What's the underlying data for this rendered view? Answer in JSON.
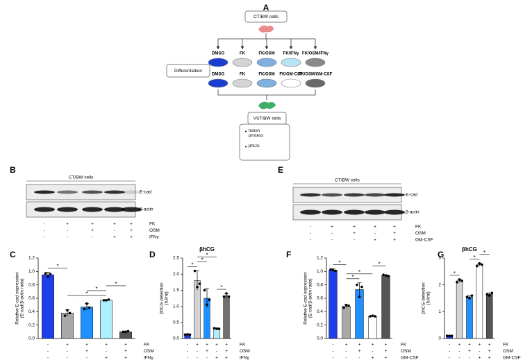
{
  "diagram": {
    "letter": "A",
    "source": "CT/BW cells",
    "row1": [
      "DMSO",
      "FK",
      "FK/OSM",
      "FK/IFNγ",
      "FK/OSM/IFNγ"
    ],
    "row2": [
      "DMSO",
      "FK",
      "FK/OSM",
      "FK/GM-CSF",
      "FK/OSM/GM-CSF"
    ],
    "colors1": [
      "#1a3fd0",
      "#d4d4d4",
      "#7fb0e0",
      "#b8e4f5",
      "#8a8a8a"
    ],
    "colors2": [
      "#1a3fd0",
      "#d4d4d4",
      "#7fb0e0",
      "#ffffff",
      "#6a6a6a"
    ],
    "step": "Differentiation",
    "result": "VST/BW cells",
    "readouts": [
      "fusion process",
      "βhCG"
    ]
  },
  "blots": [
    {
      "letter": "B",
      "title": "CT/BW cells",
      "bands": [
        "E-cad",
        "β-actin"
      ],
      "conditions": [
        {
          "name": "FK",
          "signs": [
            "-",
            "+",
            "+",
            "+",
            "+"
          ]
        },
        {
          "name": "OSM",
          "signs": [
            "-",
            "-",
            "+",
            "-",
            "+"
          ]
        },
        {
          "name": "IFNγ",
          "signs": [
            "-",
            "-",
            "-",
            "+",
            "+"
          ]
        }
      ]
    },
    {
      "letter": "E",
      "title": "CT/BW cells",
      "bands": [
        "E-cad",
        "β-actin"
      ],
      "conditions": [
        {
          "name": "FK",
          "signs": [
            "-",
            "+",
            "+",
            "+",
            "+"
          ]
        },
        {
          "name": "OSM",
          "signs": [
            "-",
            "-",
            "+",
            "-",
            "+"
          ]
        },
        {
          "name": "GM-CSF",
          "signs": [
            "-",
            "-",
            "-",
            "+",
            "+"
          ]
        }
      ]
    }
  ],
  "chart_data": [
    {
      "type": "bar",
      "letter": "C",
      "ylabel": [
        "Relative E-cad expression",
        "(E-cad/β-actin ratio)"
      ],
      "ylim": [
        0,
        1.2
      ],
      "yticks": [
        {
          "value": 0,
          "label": "0.0"
        },
        0.2,
        0.4,
        0.6,
        0.8,
        {
          "value": 1,
          "label": "1.0"
        },
        1.2
      ],
      "values": [
        0.95,
        0.38,
        0.47,
        0.57,
        0.1
      ],
      "errors": [
        0.04,
        0.05,
        0.05,
        0.01,
        0.01
      ],
      "points": [
        [
          0.97,
          0.92,
          0.96
        ],
        [
          0.34,
          0.42,
          0.38
        ],
        [
          0.44,
          0.52,
          0.46
        ],
        [
          0.57,
          0.57,
          0.58
        ],
        [
          0.1,
          0.1,
          0.11
        ]
      ],
      "colors": [
        "#1d3fe8",
        "#a9a9a9",
        "#1e90ff",
        "#aeeeff",
        "#555555"
      ],
      "conditions": [
        {
          "name": "FK",
          "signs": [
            "-",
            "+",
            "+",
            "+",
            "+"
          ]
        },
        {
          "name": "OSM",
          "signs": [
            "-",
            "-",
            "+",
            "-",
            "+"
          ]
        },
        {
          "name": "IFNγ",
          "signs": [
            "-",
            "-",
            "-",
            "+",
            "+"
          ]
        }
      ],
      "significance": [
        {
          "from": 0,
          "to": 1,
          "label": "*"
        },
        {
          "from": 1,
          "to": 3,
          "label": "*"
        },
        {
          "from": 2,
          "to": 3,
          "label": "*"
        },
        {
          "from": 3,
          "to": 4,
          "label": "*"
        }
      ]
    },
    {
      "type": "bar",
      "letter": "D",
      "title": "βhCG",
      "ylabel": [
        "βhCG detection",
        "(IU/ml)"
      ],
      "ylim": [
        0,
        2.5
      ],
      "yticks": [
        {
          "value": 0,
          "label": "0.0"
        },
        0.5,
        {
          "value": 1,
          "label": "1.0"
        },
        1.5,
        {
          "value": 2,
          "label": "2.0"
        },
        2.5
      ],
      "values": [
        0.12,
        1.8,
        1.25,
        0.3,
        1.33
      ],
      "errors": [
        0.02,
        0.3,
        0.3,
        0.03,
        0.07
      ],
      "points": [
        [
          0.12,
          0.13,
          0.12
        ],
        [
          2.1,
          1.6,
          1.7
        ],
        [
          1.5,
          1.05,
          1.2
        ],
        [
          0.32,
          0.3,
          0.3
        ],
        [
          1.3,
          1.4,
          1.3
        ]
      ],
      "colors": [
        "#1d3fe8",
        "#d3d3d3",
        "#1e90ff",
        "#aeeeff",
        "#707070"
      ],
      "conditions": [
        {
          "name": "FK",
          "signs": [
            "-",
            "+",
            "+",
            "+",
            "+"
          ]
        },
        {
          "name": "OSM",
          "signs": [
            "-",
            "-",
            "+",
            "-",
            "+"
          ]
        },
        {
          "name": "IFNγ",
          "signs": [
            "-",
            "-",
            "-",
            "+",
            "+"
          ]
        }
      ],
      "significance": [
        {
          "from": 0,
          "to": 1,
          "label": "*"
        },
        {
          "from": 1,
          "to": 2,
          "label": "*"
        },
        {
          "from": 1,
          "to": 3,
          "label": "*"
        },
        {
          "from": 3,
          "to": 4,
          "label": "*"
        }
      ]
    },
    {
      "type": "bar",
      "letter": "F",
      "ylabel": [
        "Relative E-cad expression",
        "(E-cad/β-actin ratio)"
      ],
      "ylim": [
        0,
        1.2
      ],
      "yticks": [
        {
          "value": 0,
          "label": "0.0"
        },
        0.2,
        0.4,
        0.6,
        0.8,
        {
          "value": 1,
          "label": "1.0"
        },
        1.2
      ],
      "values": [
        1.02,
        0.48,
        0.73,
        0.33,
        0.94
      ],
      "errors": [
        0.02,
        0.02,
        0.1,
        0.01,
        0.01
      ],
      "points": [
        [
          1.03,
          1.02,
          1.01
        ],
        [
          0.46,
          0.5,
          0.49
        ],
        [
          0.8,
          0.62,
          0.77
        ],
        [
          0.33,
          0.34,
          0.33
        ],
        [
          0.95,
          0.94,
          0.93
        ]
      ],
      "colors": [
        "#1d3fe8",
        "#a9a9a9",
        "#1e90ff",
        "#ffffff",
        "#555555"
      ],
      "conditions": [
        {
          "name": "FK",
          "signs": [
            "-",
            "+",
            "+",
            "+",
            "+"
          ]
        },
        {
          "name": "OSM",
          "signs": [
            "-",
            "-",
            "+",
            "-",
            "+"
          ]
        },
        {
          "name": "GM-CSF",
          "signs": [
            "-",
            "-",
            "-",
            "+",
            "+"
          ]
        }
      ],
      "significance": [
        {
          "from": 0,
          "to": 1,
          "label": "*"
        },
        {
          "from": 1,
          "to": 2,
          "label": "*"
        },
        {
          "from": 1,
          "to": 3,
          "label": "*"
        },
        {
          "from": 3,
          "to": 4,
          "label": "*"
        }
      ]
    },
    {
      "type": "bar",
      "letter": "G",
      "title": "βhCG",
      "ylabel": [
        "βhCG detection",
        "(IU/ml)"
      ],
      "ylim": [
        0,
        3
      ],
      "yticks": [
        0,
        1,
        2,
        3
      ],
      "values": [
        0.1,
        2.15,
        1.55,
        2.75,
        1.65
      ],
      "errors": [
        0.02,
        0.05,
        0.05,
        0.05,
        0.05
      ],
      "points": [
        [
          0.1,
          0.1,
          0.1
        ],
        [
          2.1,
          2.2,
          2.15
        ],
        [
          1.55,
          1.5,
          1.6
        ],
        [
          2.7,
          2.8,
          2.75
        ],
        [
          1.65,
          1.6,
          1.7
        ]
      ],
      "colors": [
        "#1d3fe8",
        "#d3d3d3",
        "#1e90ff",
        "#ffffff",
        "#555555"
      ],
      "conditions": [
        {
          "name": "FK",
          "signs": [
            "-",
            "+",
            "+",
            "+",
            "+"
          ]
        },
        {
          "name": "OSM",
          "signs": [
            "-",
            "-",
            "+",
            "-",
            "+"
          ]
        },
        {
          "name": "GM-CSF",
          "signs": [
            "-",
            "-",
            "-",
            "+",
            "+"
          ]
        }
      ],
      "significance": [
        {
          "from": 0,
          "to": 1,
          "label": "*"
        },
        {
          "from": 2,
          "to": 3,
          "label": "*"
        },
        {
          "from": 3,
          "to": 4,
          "label": "*"
        }
      ]
    }
  ]
}
